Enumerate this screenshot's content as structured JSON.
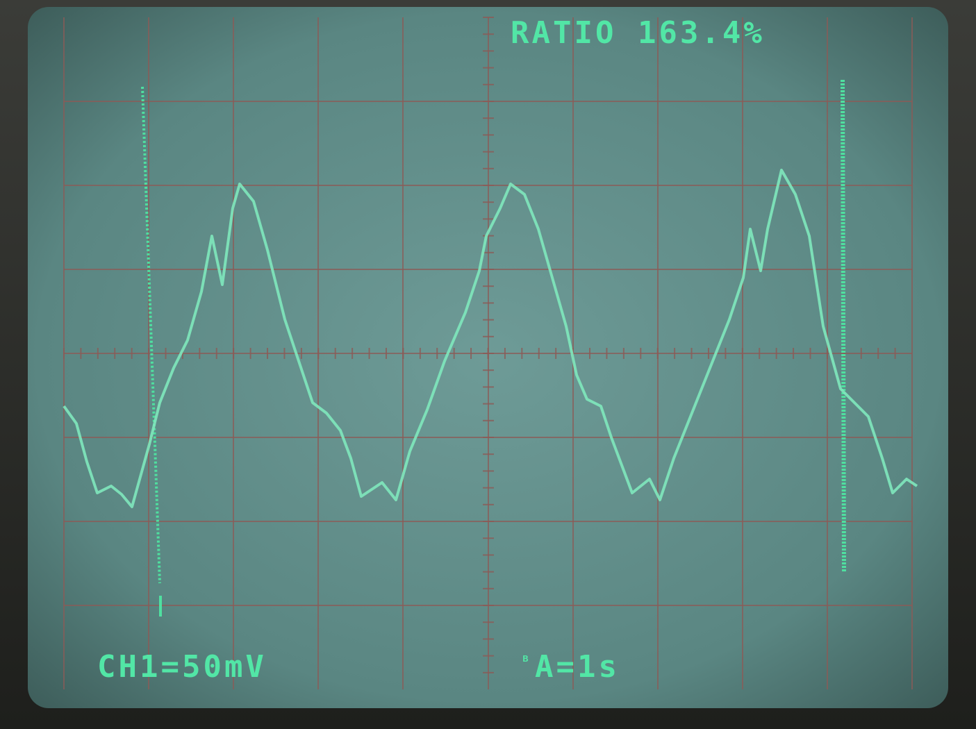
{
  "readouts": {
    "ratio": "RATIO 163.4%",
    "channel": "CH1=50mV",
    "timebase": "A=1s"
  }
}
